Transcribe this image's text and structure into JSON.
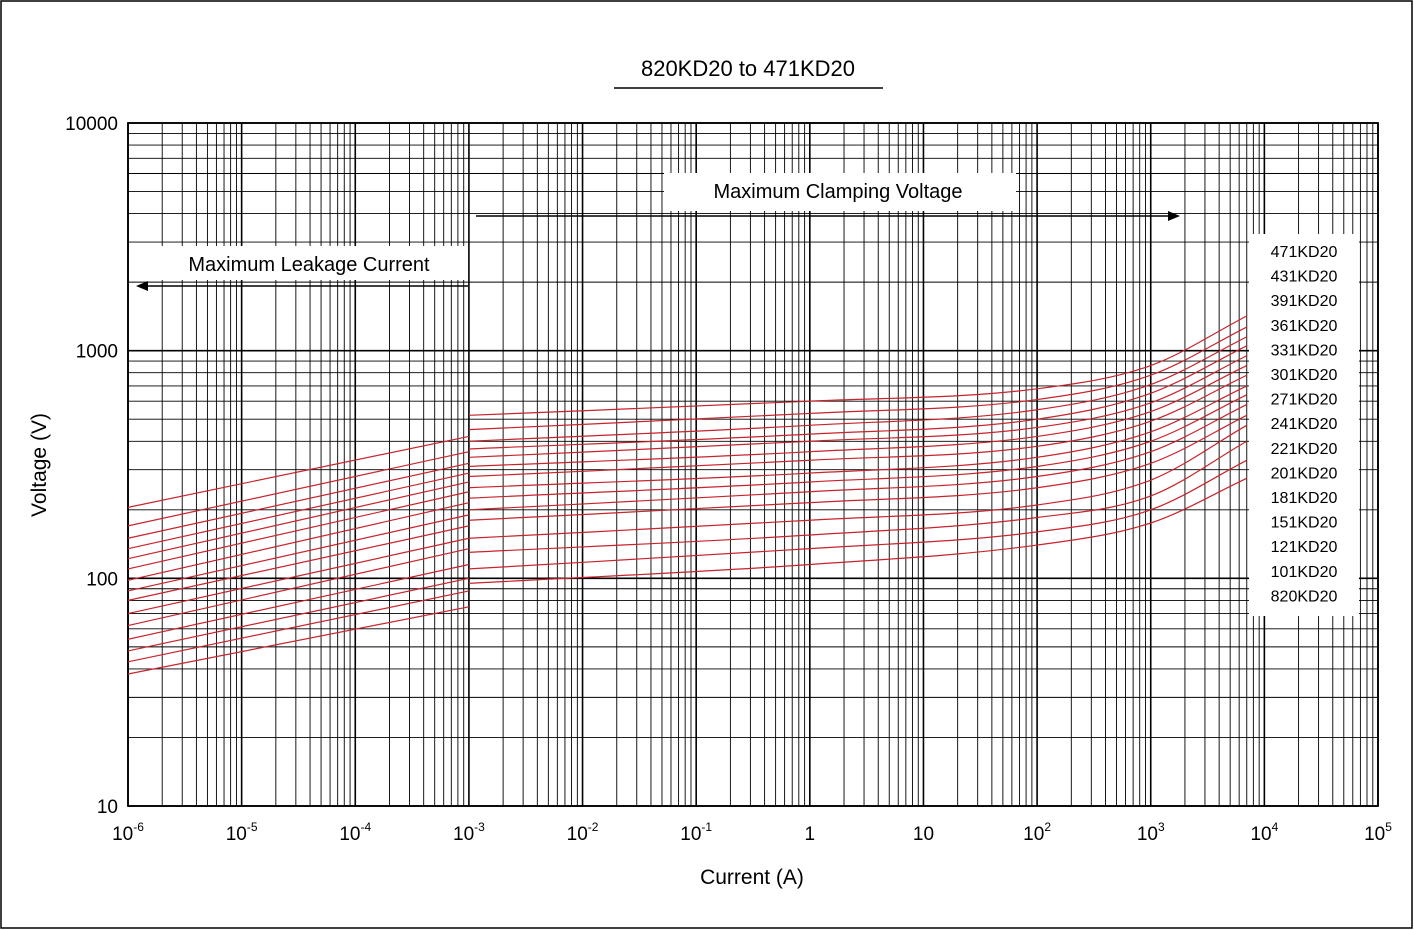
{
  "chart_data": {
    "type": "line",
    "title": "820KD20 to 471KD20",
    "xlabel": "Current (A)",
    "ylabel": "Voltage (V)",
    "xscale": "log",
    "yscale": "log",
    "xlim": [
      1e-06,
      100000
    ],
    "ylim": [
      10,
      10000
    ],
    "x_ticks": [
      {
        "base": "10",
        "exp": "-6"
      },
      {
        "base": "10",
        "exp": "-5"
      },
      {
        "base": "10",
        "exp": "-4"
      },
      {
        "base": "10",
        "exp": "-3"
      },
      {
        "base": "10",
        "exp": "-2"
      },
      {
        "base": "10",
        "exp": "-1"
      },
      {
        "base": "1",
        "exp": ""
      },
      {
        "base": "10",
        "exp": ""
      },
      {
        "base": "10",
        "exp": "2"
      },
      {
        "base": "10",
        "exp": "3"
      },
      {
        "base": "10",
        "exp": "4"
      },
      {
        "base": "10",
        "exp": "5"
      }
    ],
    "y_ticks": [
      "10",
      "100",
      "1000",
      "10000"
    ],
    "grid": true,
    "color": "#c8242b",
    "annotations": [
      {
        "text": "Maximum Leakage Current",
        "arrow": "left"
      },
      {
        "text": "Maximum Clamping Voltage",
        "arrow": "right"
      }
    ],
    "legend_order": [
      "471KD20",
      "431KD20",
      "391KD20",
      "361KD20",
      "331KD20",
      "301KD20",
      "271KD20",
      "241KD20",
      "221KD20",
      "201KD20",
      "181KD20",
      "151KD20",
      "121KD20",
      "101KD20",
      "820KD20"
    ],
    "series": [
      {
        "name": "820KD20",
        "leakage": {
          "x": [
            1e-06,
            0.001
          ],
          "y": [
            38,
            75
          ]
        },
        "clamping": {
          "x": [
            0.001,
            1,
            100,
            1000,
            7000
          ],
          "y": [
            95,
            115,
            140,
            175,
            275
          ]
        }
      },
      {
        "name": "101KD20",
        "leakage": {
          "x": [
            1e-06,
            0.001
          ],
          "y": [
            43,
            88
          ]
        },
        "clamping": {
          "x": [
            0.001,
            1,
            100,
            1000,
            7000
          ],
          "y": [
            110,
            135,
            160,
            200,
            330
          ]
        }
      },
      {
        "name": "121KD20",
        "leakage": {
          "x": [
            1e-06,
            0.001
          ],
          "y": [
            48,
            100
          ]
        },
        "clamping": {
          "x": [
            0.001,
            1,
            100,
            1000,
            7000
          ],
          "y": [
            130,
            155,
            185,
            230,
            400
          ]
        }
      },
      {
        "name": "151KD20",
        "leakage": {
          "x": [
            1e-06,
            0.001
          ],
          "y": [
            54,
            115
          ]
        },
        "clamping": {
          "x": [
            0.001,
            1,
            100,
            1000,
            7000
          ],
          "y": [
            150,
            180,
            210,
            270,
            470
          ]
        }
      },
      {
        "name": "181KD20",
        "leakage": {
          "x": [
            1e-06,
            0.001
          ],
          "y": [
            62,
            135
          ]
        },
        "clamping": {
          "x": [
            0.001,
            1,
            100,
            1000,
            7000
          ],
          "y": [
            180,
            215,
            250,
            320,
            520
          ]
        }
      },
      {
        "name": "201KD20",
        "leakage": {
          "x": [
            1e-06,
            0.001
          ],
          "y": [
            70,
            150
          ]
        },
        "clamping": {
          "x": [
            0.001,
            1,
            100,
            1000,
            7000
          ],
          "y": [
            200,
            240,
            280,
            360,
            580
          ]
        }
      },
      {
        "name": "221KD20",
        "leakage": {
          "x": [
            1e-06,
            0.001
          ],
          "y": [
            80,
            170
          ]
        },
        "clamping": {
          "x": [
            0.001,
            1,
            100,
            1000,
            7000
          ],
          "y": [
            225,
            265,
            310,
            400,
            640
          ]
        }
      },
      {
        "name": "241KD20",
        "leakage": {
          "x": [
            1e-06,
            0.001
          ],
          "y": [
            88,
            190
          ]
        },
        "clamping": {
          "x": [
            0.001,
            1,
            100,
            1000,
            7000
          ],
          "y": [
            250,
            290,
            340,
            440,
            700
          ]
        }
      },
      {
        "name": "271KD20",
        "leakage": {
          "x": [
            1e-06,
            0.001
          ],
          "y": [
            98,
            215
          ]
        },
        "clamping": {
          "x": [
            0.001,
            1,
            100,
            1000,
            7000
          ],
          "y": [
            280,
            330,
            380,
            490,
            780
          ]
        }
      },
      {
        "name": "301KD20",
        "leakage": {
          "x": [
            1e-06,
            0.001
          ],
          "y": [
            110,
            240
          ]
        },
        "clamping": {
          "x": [
            0.001,
            1,
            100,
            1000,
            7000
          ],
          "y": [
            310,
            360,
            420,
            540,
            860
          ]
        }
      },
      {
        "name": "331KD20",
        "leakage": {
          "x": [
            1e-06,
            0.001
          ],
          "y": [
            122,
            265
          ]
        },
        "clamping": {
          "x": [
            0.001,
            1,
            100,
            1000,
            7000
          ],
          "y": [
            340,
            400,
            460,
            590,
            950
          ]
        }
      },
      {
        "name": "361KD20",
        "leakage": {
          "x": [
            1e-06,
            0.001
          ],
          "y": [
            135,
            290
          ]
        },
        "clamping": {
          "x": [
            0.001,
            1,
            100,
            1000,
            7000
          ],
          "y": [
            370,
            430,
            500,
            650,
            1050
          ]
        }
      },
      {
        "name": "391KD20",
        "leakage": {
          "x": [
            1e-06,
            0.001
          ],
          "y": [
            150,
            320
          ]
        },
        "clamping": {
          "x": [
            0.001,
            1,
            100,
            1000,
            7000
          ],
          "y": [
            400,
            470,
            550,
            710,
            1150
          ]
        }
      },
      {
        "name": "431KD20",
        "leakage": {
          "x": [
            1e-06,
            0.001
          ],
          "y": [
            170,
            360
          ]
        },
        "clamping": {
          "x": [
            0.001,
            1,
            100,
            1000,
            7000
          ],
          "y": [
            450,
            530,
            610,
            780,
            1270
          ]
        }
      },
      {
        "name": "471KD20",
        "leakage": {
          "x": [
            1e-06,
            0.001
          ],
          "y": [
            205,
            420
          ]
        },
        "clamping": {
          "x": [
            0.001,
            1,
            100,
            1000,
            7000
          ],
          "y": [
            520,
            600,
            680,
            860,
            1420
          ]
        }
      }
    ]
  }
}
